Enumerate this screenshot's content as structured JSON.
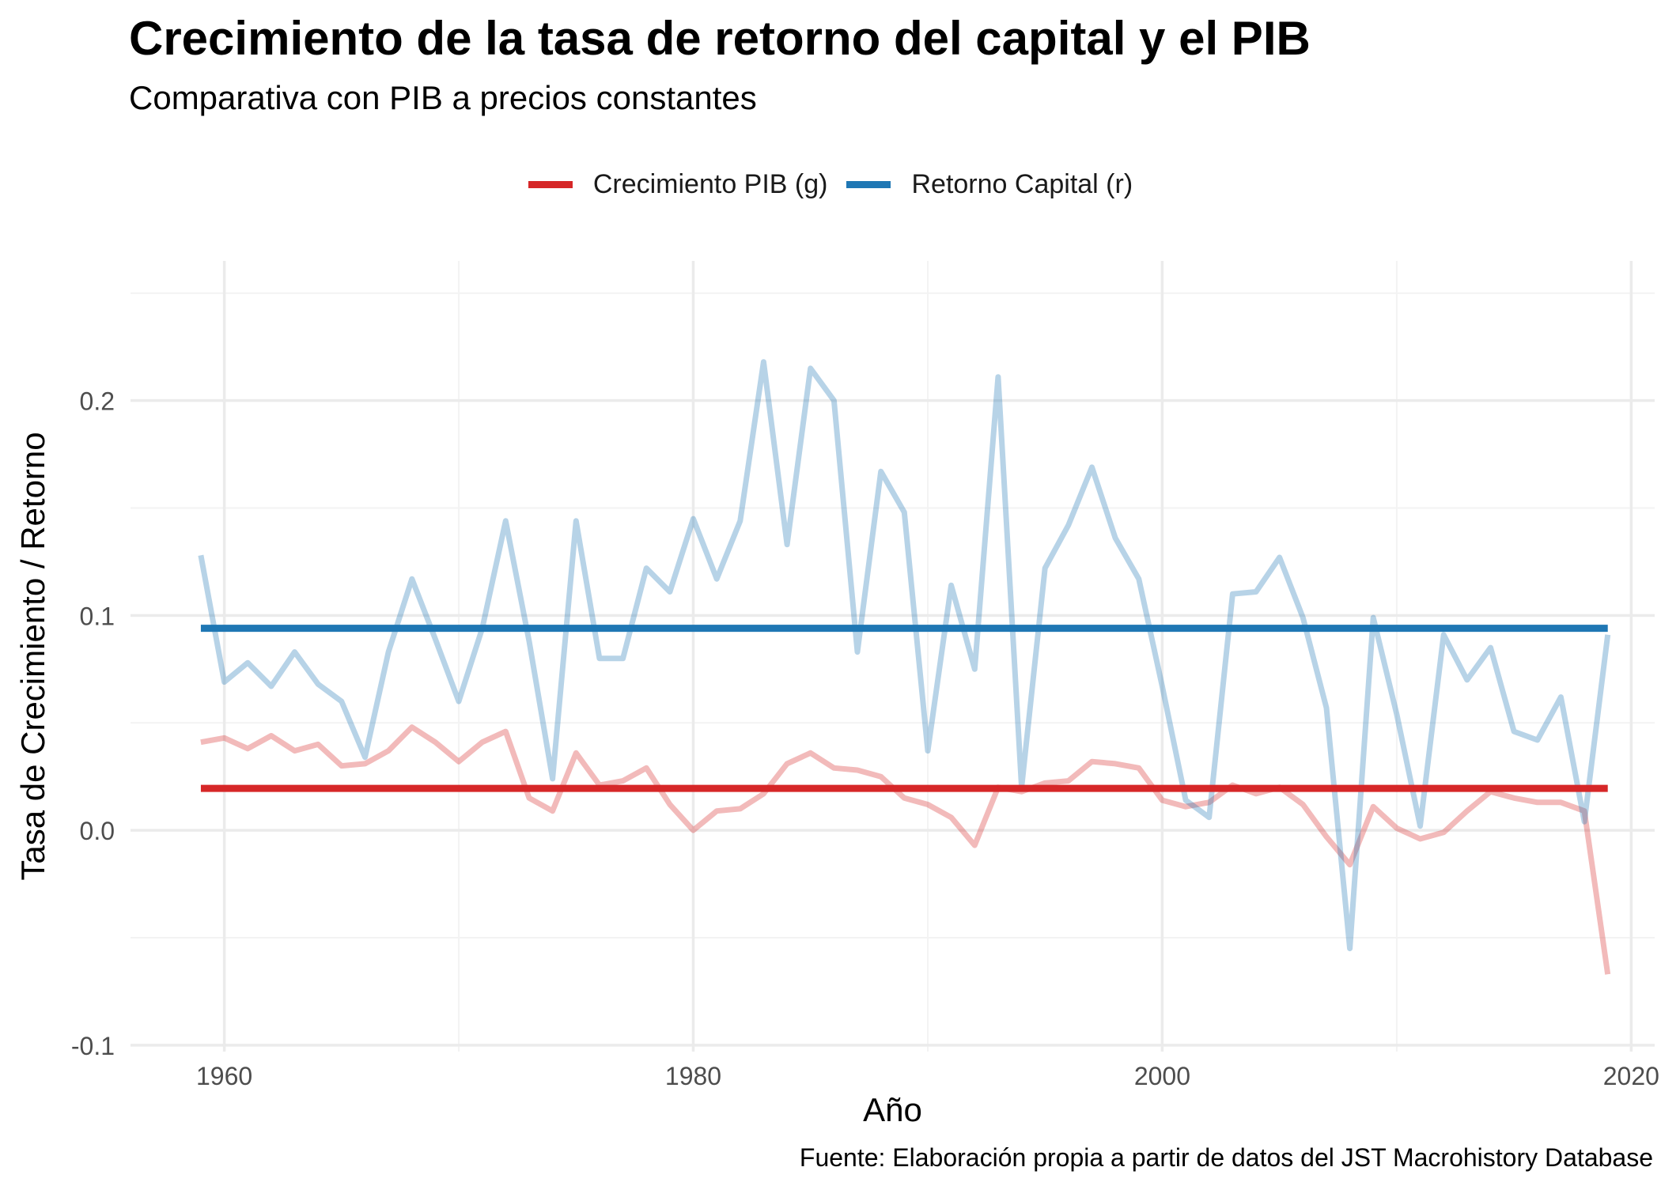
{
  "chart_data": {
    "type": "line",
    "title": "Crecimiento de la tasa de retorno del capital y el PIB",
    "subtitle": "Comparativa con PIB a precios constantes",
    "xlabel": "Año",
    "ylabel": "Tasa de Crecimiento / Retorno",
    "caption": "Fuente: Elaboración propia a partir de datos del JST Macrohistory Database",
    "xlim": [
      1956,
      2021
    ],
    "ylim": [
      -0.103,
      0.265
    ],
    "x_ticks": [
      1960,
      1980,
      2000,
      2020
    ],
    "x_tick_labels": [
      "1960",
      "1980",
      "2000",
      "2020"
    ],
    "y_ticks": [
      -0.1,
      0.0,
      0.1,
      0.2
    ],
    "y_tick_labels": [
      "-0.1",
      "0.0",
      "0.1",
      "0.2"
    ],
    "grid": true,
    "legend_position": "top",
    "legend": [
      {
        "name": "Crecimiento PIB (g)",
        "color": "#d62728"
      },
      {
        "name": "Retorno Capital (r)",
        "color": "#1f77b4"
      }
    ],
    "x": [
      1959,
      1960,
      1961,
      1962,
      1963,
      1964,
      1965,
      1966,
      1967,
      1968,
      1969,
      1970,
      1971,
      1972,
      1973,
      1974,
      1975,
      1976,
      1977,
      1978,
      1979,
      1980,
      1981,
      1982,
      1983,
      1984,
      1985,
      1986,
      1987,
      1988,
      1989,
      1990,
      1991,
      1992,
      1993,
      1994,
      1995,
      1996,
      1997,
      1998,
      1999,
      2000,
      2001,
      2002,
      2003,
      2004,
      2005,
      2006,
      2007,
      2008,
      2009,
      2010,
      2011,
      2012,
      2013,
      2014,
      2015,
      2016,
      2017,
      2018,
      2019
    ],
    "series": [
      {
        "name": "Crecimiento PIB (g)",
        "color": "#d62728",
        "style": "faded",
        "values": [
          0.041,
          0.043,
          0.038,
          0.044,
          0.037,
          0.04,
          0.03,
          0.031,
          0.037,
          0.048,
          0.041,
          0.032,
          0.041,
          0.046,
          0.015,
          0.009,
          0.036,
          0.021,
          0.023,
          0.029,
          0.012,
          0.0,
          0.009,
          0.01,
          0.017,
          0.031,
          0.036,
          0.029,
          0.028,
          0.025,
          0.015,
          0.012,
          0.006,
          -0.007,
          0.02,
          0.018,
          0.022,
          0.023,
          0.032,
          0.031,
          0.029,
          0.014,
          0.011,
          0.013,
          0.021,
          0.017,
          0.02,
          0.012,
          -0.003,
          -0.016,
          0.011,
          0.001,
          -0.004,
          -0.001,
          0.009,
          0.018,
          0.015,
          0.013,
          0.013,
          0.009,
          -0.067
        ]
      },
      {
        "name": "Retorno Capital (r)",
        "color": "#1f77b4",
        "style": "faded",
        "values": [
          0.128,
          0.069,
          0.078,
          0.067,
          0.083,
          0.068,
          0.06,
          0.034,
          0.083,
          0.117,
          0.089,
          0.06,
          0.094,
          0.144,
          0.088,
          0.024,
          0.144,
          0.08,
          0.08,
          0.122,
          0.111,
          0.145,
          0.117,
          0.144,
          0.218,
          0.133,
          0.215,
          0.2,
          0.083,
          0.167,
          0.148,
          0.037,
          0.114,
          0.075,
          0.211,
          0.02,
          0.122,
          0.142,
          0.169,
          0.136,
          0.117,
          0.067,
          0.014,
          0.006,
          0.11,
          0.111,
          0.127,
          0.099,
          0.057,
          -0.055,
          0.099,
          0.054,
          0.002,
          0.091,
          0.07,
          0.085,
          0.046,
          0.042,
          0.062,
          0.004,
          0.091
        ]
      },
      {
        "name": "Crecimiento PIB (g) media",
        "color": "#d62728",
        "style": "mean",
        "values": [
          0.0195,
          0.0195
        ],
        "x_range": [
          1959,
          2019
        ]
      },
      {
        "name": "Retorno Capital (r) media",
        "color": "#1f77b4",
        "style": "mean",
        "values": [
          0.094,
          0.094
        ],
        "x_range": [
          1959,
          2019
        ]
      }
    ]
  }
}
